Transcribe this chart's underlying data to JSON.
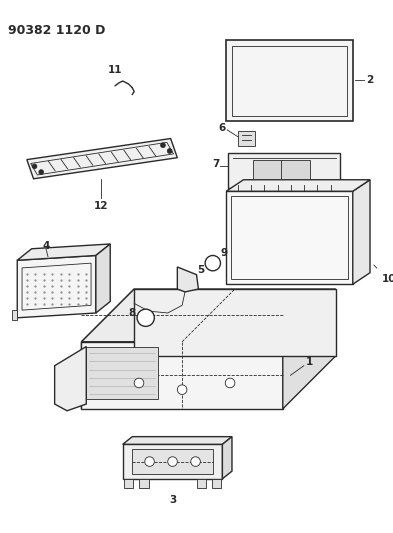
{
  "title": "90382 1120 D",
  "bg_color": "#ffffff",
  "line_color": "#2a2a2a",
  "title_fontsize": 9,
  "label_fontsize": 7.5,
  "figsize": [
    3.93,
    5.33
  ],
  "dpi": 100
}
